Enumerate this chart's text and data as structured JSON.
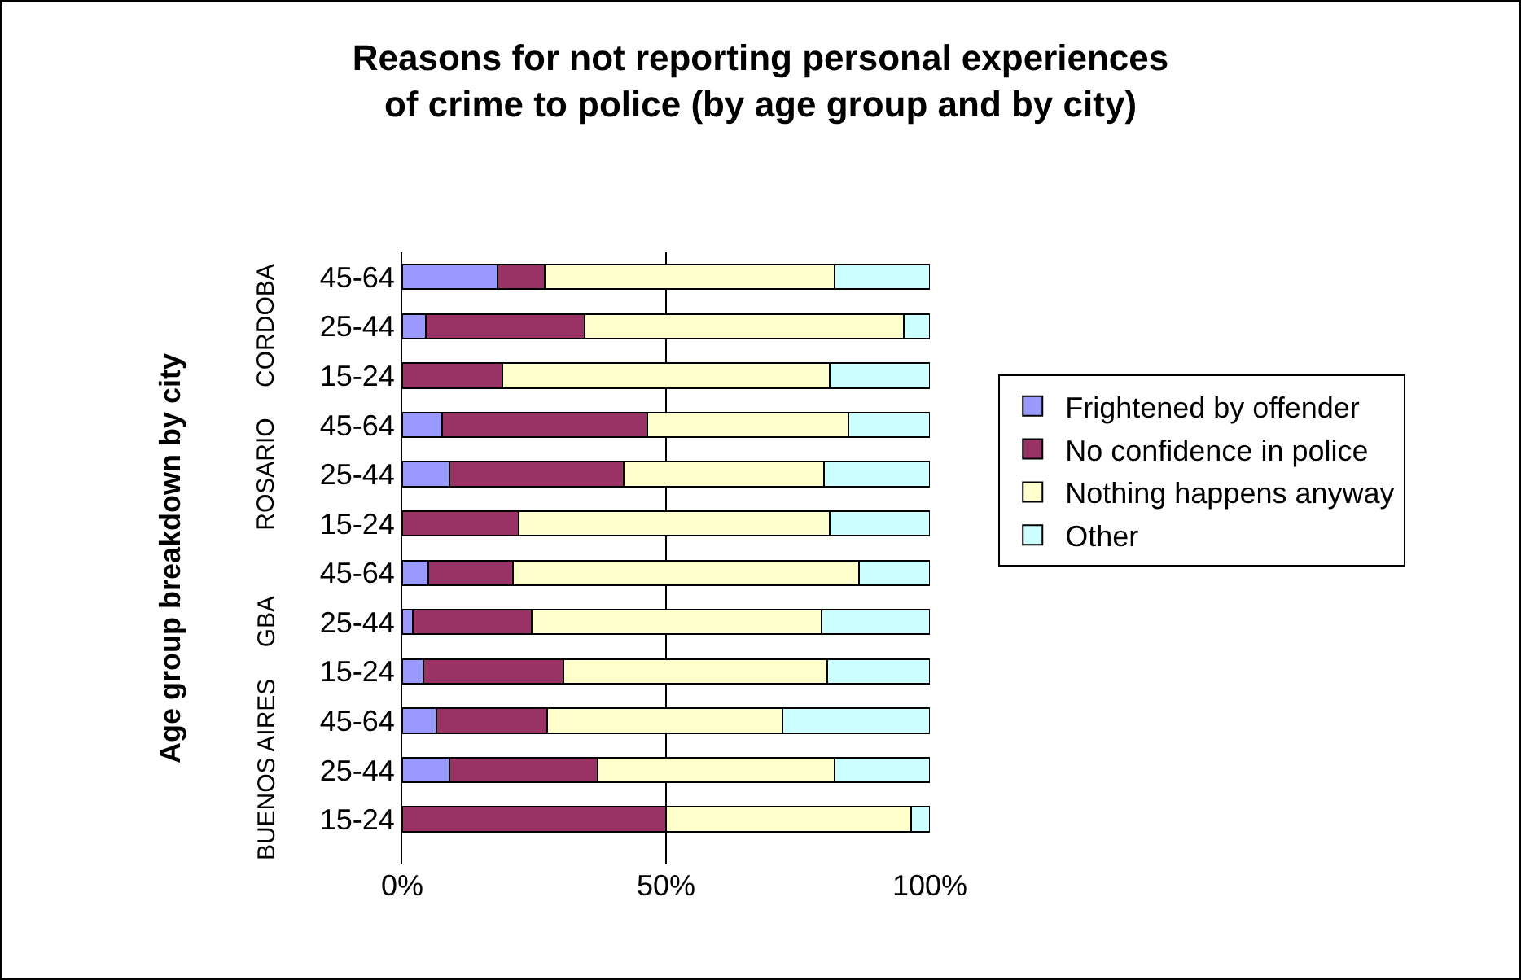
{
  "chart_data": {
    "type": "bar",
    "orientation": "horizontal",
    "stacked": true,
    "title": "Reasons for not reporting personal experiences of crime to police (by age group and by city)",
    "ylabel": "Age group breakdown by city",
    "categories": [
      "45-64",
      "25-44",
      "15-24",
      "45-64",
      "25-44",
      "15-24",
      "45-64",
      "25-44",
      "15-24",
      "45-64",
      "25-44",
      "15-24"
    ],
    "annotations": [
      "CORDOBA",
      "ROSARIO",
      "GBA",
      "BUENOS AIRES"
    ],
    "series": [
      {
        "name": "Frightened by offender",
        "color": "#9999ff",
        "values": [
          18,
          4.5,
          0,
          7.5,
          9,
          0,
          5,
          2,
          4,
          6.5,
          9,
          0
        ]
      },
      {
        "name": "No confidence in police",
        "color": "#993366",
        "values": [
          9,
          30,
          19,
          39,
          33,
          22,
          16,
          22.5,
          26.5,
          21,
          28,
          50
        ]
      },
      {
        "name": "Nothing happens anyway",
        "color": "#ffffcc",
        "values": [
          55,
          60.5,
          62,
          38,
          38,
          59,
          65.5,
          55,
          50,
          44.5,
          45,
          46.5
        ]
      },
      {
        "name": "Other",
        "color": "#ccffff",
        "values": [
          18,
          5,
          19,
          15.5,
          20,
          19,
          13.5,
          20.5,
          19.5,
          28,
          18,
          3.5
        ]
      }
    ],
    "xlim": [
      0,
      100
    ],
    "xticks": [
      {
        "value": 0,
        "label": "0%"
      },
      {
        "value": 50,
        "label": "50%"
      },
      {
        "value": 100,
        "label": "100%"
      }
    ],
    "grid": "x",
    "legend": "right"
  }
}
